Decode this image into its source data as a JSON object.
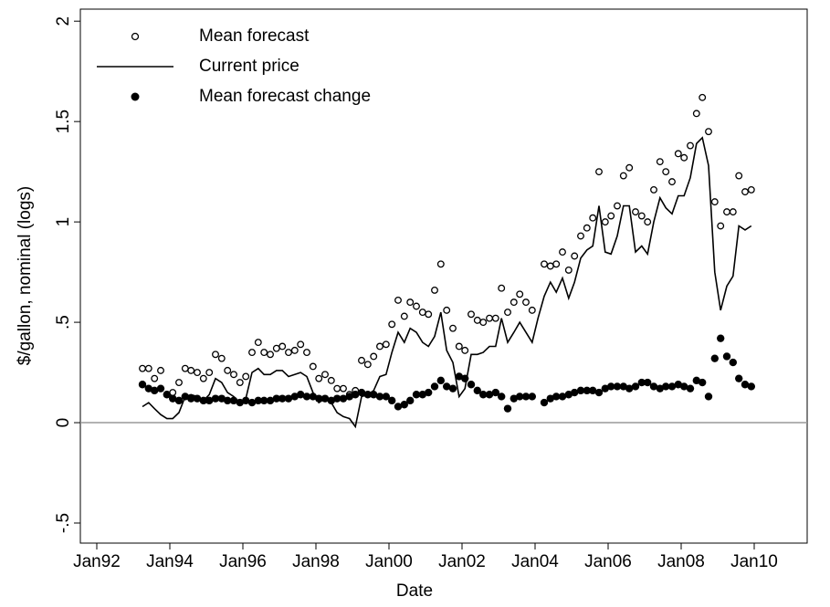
{
  "chart_data": {
    "type": "scatter",
    "xlabel": "Date",
    "ylabel": "$/gallon, nominal (logs)",
    "xlim": [
      1991.55,
      2011.45
    ],
    "ylim": [
      -0.6,
      2.06
    ],
    "xticks": [
      {
        "value": 1992,
        "label": "Jan92"
      },
      {
        "value": 1994,
        "label": "Jan94"
      },
      {
        "value": 1996,
        "label": "Jan96"
      },
      {
        "value": 1998,
        "label": "Jan98"
      },
      {
        "value": 2000,
        "label": "Jan00"
      },
      {
        "value": 2002,
        "label": "Jan02"
      },
      {
        "value": 2004,
        "label": "Jan04"
      },
      {
        "value": 2006,
        "label": "Jan06"
      },
      {
        "value": 2008,
        "label": "Jan08"
      },
      {
        "value": 2010,
        "label": "Jan10"
      }
    ],
    "yticks": [
      {
        "value": -0.5,
        "label": "-.5"
      },
      0,
      {
        "value": 0.5,
        "label": ".5"
      },
      1,
      1.5,
      2
    ],
    "reference_line": 0,
    "reference_color": "#999999",
    "legend": "top-left",
    "x": [
      1993.25,
      1993.42,
      1993.58,
      1993.75,
      1993.92,
      1994.08,
      1994.25,
      1994.42,
      1994.58,
      1994.75,
      1994.92,
      1995.08,
      1995.25,
      1995.42,
      1995.58,
      1995.75,
      1995.92,
      1996.08,
      1996.25,
      1996.42,
      1996.58,
      1996.75,
      1996.92,
      1997.08,
      1997.25,
      1997.42,
      1997.58,
      1997.75,
      1997.92,
      1998.08,
      1998.25,
      1998.42,
      1998.58,
      1998.75,
      1998.92,
      1999.08,
      1999.25,
      1999.42,
      1999.58,
      1999.75,
      1999.92,
      2000.08,
      2000.25,
      2000.42,
      2000.58,
      2000.75,
      2000.92,
      2001.08,
      2001.25,
      2001.42,
      2001.58,
      2001.75,
      2001.92,
      2002.08,
      2002.25,
      2002.42,
      2002.58,
      2002.75,
      2002.92,
      2003.08,
      2003.25,
      2003.42,
      2003.58,
      2003.75,
      2003.92,
      2004.08,
      2004.25,
      2004.42,
      2004.58,
      2004.75,
      2004.92,
      2005.08,
      2005.25,
      2005.42,
      2005.58,
      2005.75,
      2005.92,
      2006.08,
      2006.25,
      2006.42,
      2006.58,
      2006.75,
      2006.92,
      2007.08,
      2007.25,
      2007.42,
      2007.58,
      2007.75,
      2007.92,
      2008.08,
      2008.25,
      2008.42,
      2008.58,
      2008.75,
      2008.92,
      2009.08,
      2009.25,
      2009.42,
      2009.58,
      2009.75,
      2009.92
    ],
    "series": [
      {
        "name": "Mean forecast",
        "color": "#000000",
        "style": "open-circle",
        "values": [
          0.27,
          0.27,
          0.22,
          0.26,
          0.14,
          0.15,
          0.2,
          0.27,
          0.26,
          0.25,
          0.22,
          0.25,
          0.34,
          0.32,
          0.26,
          0.24,
          0.2,
          0.23,
          0.35,
          0.4,
          0.35,
          0.34,
          0.37,
          0.38,
          0.35,
          0.36,
          0.39,
          0.35,
          0.28,
          0.22,
          0.24,
          0.21,
          0.17,
          0.17,
          0.14,
          0.16,
          0.31,
          0.29,
          0.33,
          0.38,
          0.39,
          0.49,
          0.61,
          0.53,
          0.6,
          0.58,
          0.55,
          0.54,
          0.66,
          0.79,
          0.56,
          0.47,
          0.38,
          0.36,
          0.54,
          0.51,
          0.5,
          0.52,
          0.52,
          0.67,
          0.55,
          0.6,
          0.64,
          0.6,
          0.56,
          null,
          0.79,
          0.78,
          0.79,
          0.85,
          0.76,
          0.83,
          0.93,
          0.97,
          1.02,
          1.25,
          1.0,
          1.03,
          1.08,
          1.23,
          1.27,
          1.05,
          1.03,
          1.0,
          1.16,
          1.3,
          1.25,
          1.2,
          1.34,
          1.32,
          1.38,
          1.54,
          1.62,
          1.45,
          1.1,
          0.98,
          1.05,
          1.05,
          1.23,
          1.15,
          1.16
        ]
      },
      {
        "name": "Current price",
        "color": "#000000",
        "style": "line",
        "values": [
          0.08,
          0.1,
          0.07,
          0.04,
          0.02,
          0.02,
          0.05,
          0.13,
          0.14,
          0.13,
          0.11,
          0.14,
          0.22,
          0.2,
          0.15,
          0.13,
          0.1,
          0.12,
          0.25,
          0.27,
          0.24,
          0.24,
          0.26,
          0.26,
          0.23,
          0.24,
          0.25,
          0.23,
          0.15,
          0.1,
          0.12,
          0.1,
          0.05,
          0.03,
          0.02,
          -0.02,
          0.13,
          0.14,
          0.16,
          0.23,
          0.24,
          0.35,
          0.45,
          0.4,
          0.47,
          0.45,
          0.4,
          0.38,
          0.43,
          0.55,
          0.36,
          0.3,
          0.13,
          0.17,
          0.34,
          0.34,
          0.35,
          0.38,
          0.38,
          0.52,
          0.4,
          0.45,
          0.5,
          0.45,
          0.4,
          0.52,
          0.63,
          0.7,
          0.65,
          0.72,
          0.62,
          0.7,
          0.82,
          0.86,
          0.88,
          1.08,
          0.85,
          0.84,
          0.93,
          1.08,
          1.08,
          0.85,
          0.88,
          0.84,
          1.0,
          1.12,
          1.07,
          1.04,
          1.13,
          1.13,
          1.22,
          1.39,
          1.42,
          1.28,
          0.75,
          0.56,
          0.68,
          0.73,
          0.98,
          0.96,
          0.98
        ]
      },
      {
        "name": "Mean forecast change",
        "color": "#000000",
        "style": "filled-circle",
        "values": [
          0.19,
          0.17,
          0.16,
          0.17,
          0.14,
          0.12,
          0.11,
          0.13,
          0.12,
          0.12,
          0.11,
          0.11,
          0.12,
          0.12,
          0.11,
          0.11,
          0.1,
          0.11,
          0.1,
          0.11,
          0.11,
          0.11,
          0.12,
          0.12,
          0.12,
          0.13,
          0.14,
          0.13,
          0.13,
          0.12,
          0.12,
          0.11,
          0.12,
          0.12,
          0.13,
          0.14,
          0.15,
          0.14,
          0.14,
          0.13,
          0.13,
          0.11,
          0.08,
          0.09,
          0.11,
          0.14,
          0.14,
          0.15,
          0.18,
          0.21,
          0.18,
          0.17,
          0.23,
          0.22,
          0.19,
          0.16,
          0.14,
          0.14,
          0.15,
          0.13,
          0.07,
          0.12,
          0.13,
          0.13,
          0.13,
          null,
          0.1,
          0.12,
          0.13,
          0.13,
          0.14,
          0.15,
          0.16,
          0.16,
          0.16,
          0.15,
          0.17,
          0.18,
          0.18,
          0.18,
          0.17,
          0.18,
          0.2,
          0.2,
          0.18,
          0.17,
          0.18,
          0.18,
          0.19,
          0.18,
          0.17,
          0.21,
          0.2,
          0.13,
          0.32,
          0.42,
          0.33,
          0.3,
          0.22,
          0.19,
          0.18
        ]
      }
    ]
  }
}
